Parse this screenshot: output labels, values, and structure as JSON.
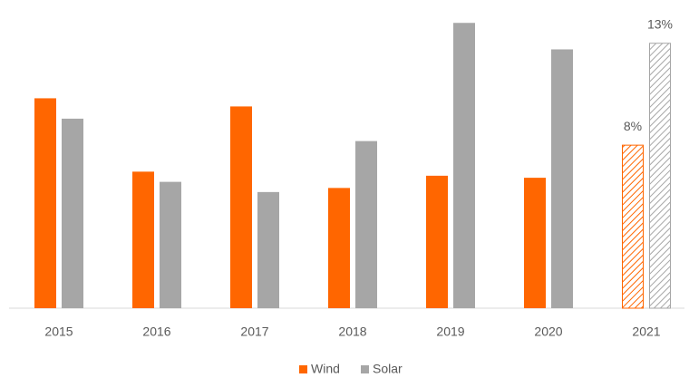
{
  "chart_data": {
    "type": "bar",
    "categories": [
      "2015",
      "2016",
      "2017",
      "2018",
      "2019",
      "2020",
      "2021"
    ],
    "series": [
      {
        "name": "Wind",
        "color": "#ff6600",
        "values": [
          10.3,
          6.7,
          9.9,
          5.9,
          6.5,
          6.4,
          8
        ],
        "value_labels": [
          null,
          null,
          null,
          null,
          null,
          null,
          "8%"
        ]
      },
      {
        "name": "Solar",
        "color": "#a6a6a6",
        "values": [
          9.3,
          6.2,
          5.7,
          8.2,
          14.0,
          12.7,
          13
        ],
        "value_labels": [
          null,
          null,
          null,
          null,
          null,
          null,
          "13%"
        ]
      }
    ],
    "hatched": [
      false,
      false,
      false,
      false,
      false,
      false,
      true
    ],
    "ylim": [
      0,
      14.5
    ],
    "legend": "bottom"
  }
}
